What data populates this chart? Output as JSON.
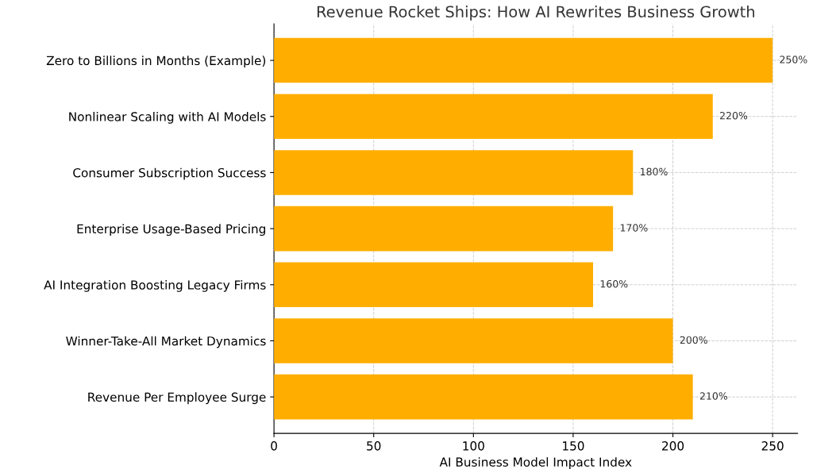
{
  "chart_data": {
    "type": "bar",
    "orientation": "horizontal",
    "title": "Revenue Rocket Ships: How AI Rewrites Business Growth",
    "xlabel": "AI Business Model Impact Index",
    "categories": [
      "Zero to Billions in Months (Example)",
      "Nonlinear Scaling with AI Models",
      "Consumer Subscription Success",
      "Enterprise Usage-Based Pricing",
      "AI Integration Boosting Legacy Firms",
      "Winner-Take-All Market Dynamics",
      "Revenue Per Employee Surge"
    ],
    "values": [
      250,
      220,
      180,
      170,
      160,
      200,
      210
    ],
    "value_labels": [
      "250%",
      "220%",
      "180%",
      "170%",
      "160%",
      "200%",
      "210%"
    ],
    "color": "#ffae00",
    "xlim": [
      0,
      262.5
    ],
    "xticks": [
      0,
      50,
      100,
      150,
      200,
      250
    ],
    "grid": true,
    "line_style": "dashed"
  }
}
